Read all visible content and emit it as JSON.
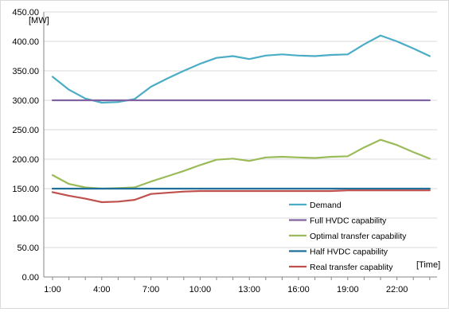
{
  "chart_data": {
    "type": "line",
    "ylabel": "[MW]",
    "xlabel": "[Time]",
    "ylim": [
      0,
      450
    ],
    "y_ticks": [
      "0.00",
      "50.00",
      "100.00",
      "150.00",
      "200.00",
      "250.00",
      "300.00",
      "350.00",
      "400.00",
      "450.00"
    ],
    "x": [
      "1:00",
      "2:00",
      "3:00",
      "4:00",
      "5:00",
      "6:00",
      "7:00",
      "8:00",
      "9:00",
      "10:00",
      "11:00",
      "12:00",
      "13:00",
      "14:00",
      "15:00",
      "16:00",
      "17:00",
      "18:00",
      "19:00",
      "20:00",
      "21:00",
      "22:00",
      "23:00",
      "24:00"
    ],
    "x_tick_labels": [
      "1:00",
      "4:00",
      "7:00",
      "10:00",
      "13:00",
      "16:00",
      "19:00",
      "22:00"
    ],
    "grid": "horizontal",
    "legend_position": "bottom-right",
    "series": [
      {
        "name": "Demand",
        "color": "#4bacc6",
        "values": [
          340,
          318,
          303,
          296,
          297,
          302,
          323,
          337,
          350,
          362,
          372,
          375,
          370,
          376,
          378,
          376,
          375,
          377,
          378,
          395,
          410,
          400,
          388,
          375
        ]
      },
      {
        "name": "Full HVDC capability",
        "color": "#8064a2",
        "values": [
          300,
          300,
          300,
          300,
          300,
          300,
          300,
          300,
          300,
          300,
          300,
          300,
          300,
          300,
          300,
          300,
          300,
          300,
          300,
          300,
          300,
          300,
          300,
          300
        ]
      },
      {
        "name": "Optimal transfer capability",
        "color": "#9bbb59",
        "values": [
          173,
          158,
          152,
          150,
          151,
          152,
          162,
          171,
          180,
          190,
          199,
          201,
          197,
          203,
          204,
          203,
          202,
          204,
          205,
          220,
          233,
          224,
          212,
          201
        ]
      },
      {
        "name": "Half HVDC capability",
        "color": "#1f6f9a",
        "values": [
          150,
          150,
          150,
          150,
          150,
          150,
          150,
          150,
          150,
          150,
          150,
          150,
          150,
          150,
          150,
          150,
          150,
          150,
          150,
          150,
          150,
          150,
          150,
          150
        ]
      },
      {
        "name": "Real transfer capablity",
        "color": "#c0504d",
        "values": [
          144,
          138,
          133,
          127,
          128,
          131,
          141,
          143,
          145,
          146,
          146,
          146,
          146,
          146,
          146,
          146,
          146,
          146,
          147,
          147,
          147,
          147,
          147,
          147
        ]
      }
    ]
  }
}
